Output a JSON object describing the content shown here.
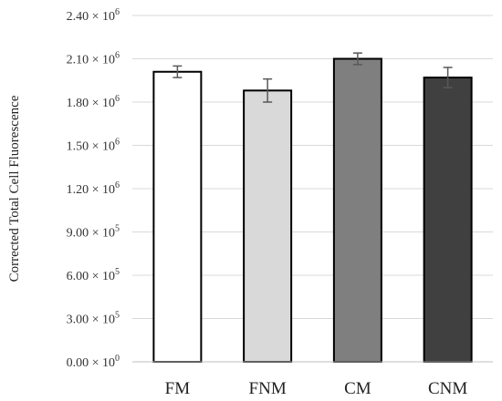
{
  "chart_data": {
    "type": "bar",
    "title": "",
    "xlabel": "",
    "ylabel": "Corrected Total Cell Fluorescence",
    "ylim": [
      0,
      2400000
    ],
    "grid": true,
    "legend": "none",
    "categories": [
      "FM",
      "FNM",
      "CM",
      "CNM"
    ],
    "values": [
      2010000,
      1880000,
      2100000,
      1970000
    ],
    "errors": [
      40000,
      80000,
      40000,
      70000
    ],
    "bar_colors": [
      "#ffffff",
      "#d9d9d9",
      "#7f7f7f",
      "#404040"
    ],
    "y_ticks": [
      {
        "mantissa": "0.00",
        "exp": "0",
        "value": 0
      },
      {
        "mantissa": "3.00",
        "exp": "5",
        "value": 300000
      },
      {
        "mantissa": "6.00",
        "exp": "5",
        "value": 600000
      },
      {
        "mantissa": "9.00",
        "exp": "5",
        "value": 900000
      },
      {
        "mantissa": "1.20",
        "exp": "6",
        "value": 1200000
      },
      {
        "mantissa": "1.50",
        "exp": "6",
        "value": 1500000
      },
      {
        "mantissa": "1.80",
        "exp": "6",
        "value": 1800000
      },
      {
        "mantissa": "2.10",
        "exp": "6",
        "value": 2100000
      },
      {
        "mantissa": "2.40",
        "exp": "6",
        "value": 2400000
      }
    ]
  }
}
